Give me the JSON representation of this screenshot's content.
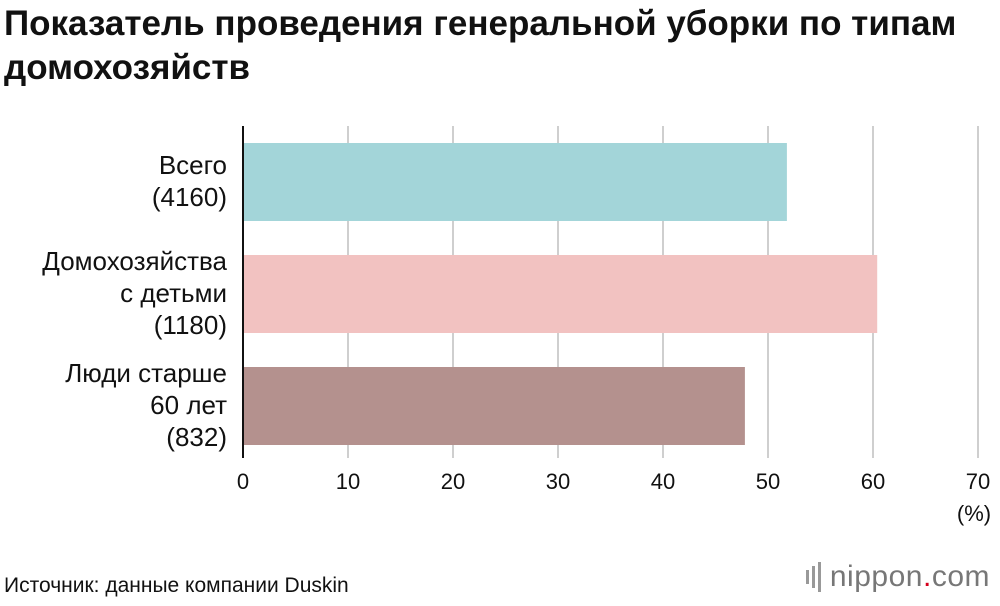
{
  "title": "Показатель проведения генеральной уборки по типам домохозяйств",
  "source": "Источник: данные компании Duskin",
  "logo": {
    "name": "nippon",
    "dot": ".",
    "suffix": "com"
  },
  "chart_data": {
    "type": "bar",
    "orientation": "horizontal",
    "categories": [
      [
        "Всего",
        "(4160)"
      ],
      [
        "Домохозяйства",
        "с детьми",
        "(1180)"
      ],
      [
        "Люди старше",
        "60 лет",
        "(832)"
      ]
    ],
    "values": [
      51.8,
      60.4,
      47.8
    ],
    "colors": [
      "#a3d5d9",
      "#f2c2c1",
      "#b4918e"
    ],
    "xlim": [
      0,
      70
    ],
    "ticks": [
      0,
      10,
      20,
      30,
      40,
      50,
      60,
      70
    ],
    "unit": "(%)",
    "grid": true
  }
}
